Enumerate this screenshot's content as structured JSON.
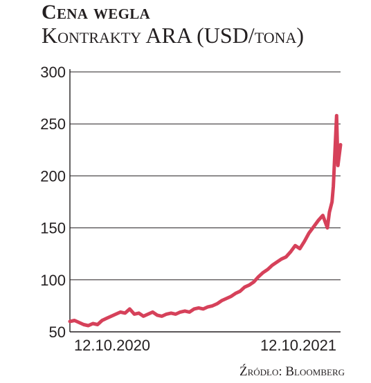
{
  "chart_data": {
    "type": "line",
    "title": "Cena wegla",
    "subtitle": "Kontrakty ARA (USD/tona)",
    "source": "Źródło: Bloomberg",
    "ylim": [
      50,
      300
    ],
    "y_ticks": [
      300,
      250,
      200,
      150,
      100,
      50
    ],
    "x_tick_labels": [
      "12.10.2020",
      "12.10.2021"
    ],
    "grid": true,
    "series_color": "#d6415a",
    "series": [
      {
        "x": [
          "2020-09-01",
          "2020-09-08",
          "2020-09-15",
          "2020-09-22",
          "2020-09-29",
          "2020-10-06",
          "2020-10-13",
          "2020-10-20",
          "2020-10-27",
          "2020-11-03",
          "2020-11-10",
          "2020-11-17",
          "2020-11-24",
          "2020-12-01",
          "2020-12-08",
          "2020-12-15",
          "2020-12-22",
          "2020-12-29",
          "2021-01-05",
          "2021-01-12",
          "2021-01-19",
          "2021-01-26",
          "2021-02-02",
          "2021-02-09",
          "2021-02-16",
          "2021-02-23",
          "2021-03-02",
          "2021-03-09",
          "2021-03-16",
          "2021-03-23",
          "2021-03-30",
          "2021-04-06",
          "2021-04-13",
          "2021-04-20",
          "2021-04-27",
          "2021-05-04",
          "2021-05-11",
          "2021-05-18",
          "2021-05-25",
          "2021-06-01",
          "2021-06-08",
          "2021-06-15",
          "2021-06-22",
          "2021-06-29",
          "2021-07-06",
          "2021-07-13",
          "2021-07-20",
          "2021-07-27",
          "2021-08-03",
          "2021-08-10",
          "2021-08-17",
          "2021-08-24",
          "2021-08-31",
          "2021-09-07",
          "2021-09-14",
          "2021-09-21",
          "2021-09-28",
          "2021-10-01",
          "2021-10-05",
          "2021-10-07",
          "2021-10-12",
          "2021-10-14",
          "2021-10-18"
        ],
        "values": [
          60,
          61,
          59,
          57,
          56,
          58,
          57,
          61,
          63,
          65,
          67,
          69,
          68,
          72,
          67,
          68,
          65,
          67,
          69,
          66,
          65,
          67,
          68,
          67,
          69,
          70,
          69,
          72,
          73,
          72,
          74,
          75,
          77,
          80,
          82,
          84,
          87,
          89,
          93,
          95,
          98,
          103,
          107,
          110,
          114,
          117,
          120,
          122,
          127,
          133,
          130,
          137,
          145,
          151,
          157,
          162,
          150,
          165,
          175,
          190,
          258,
          210,
          230
        ]
      }
    ]
  }
}
